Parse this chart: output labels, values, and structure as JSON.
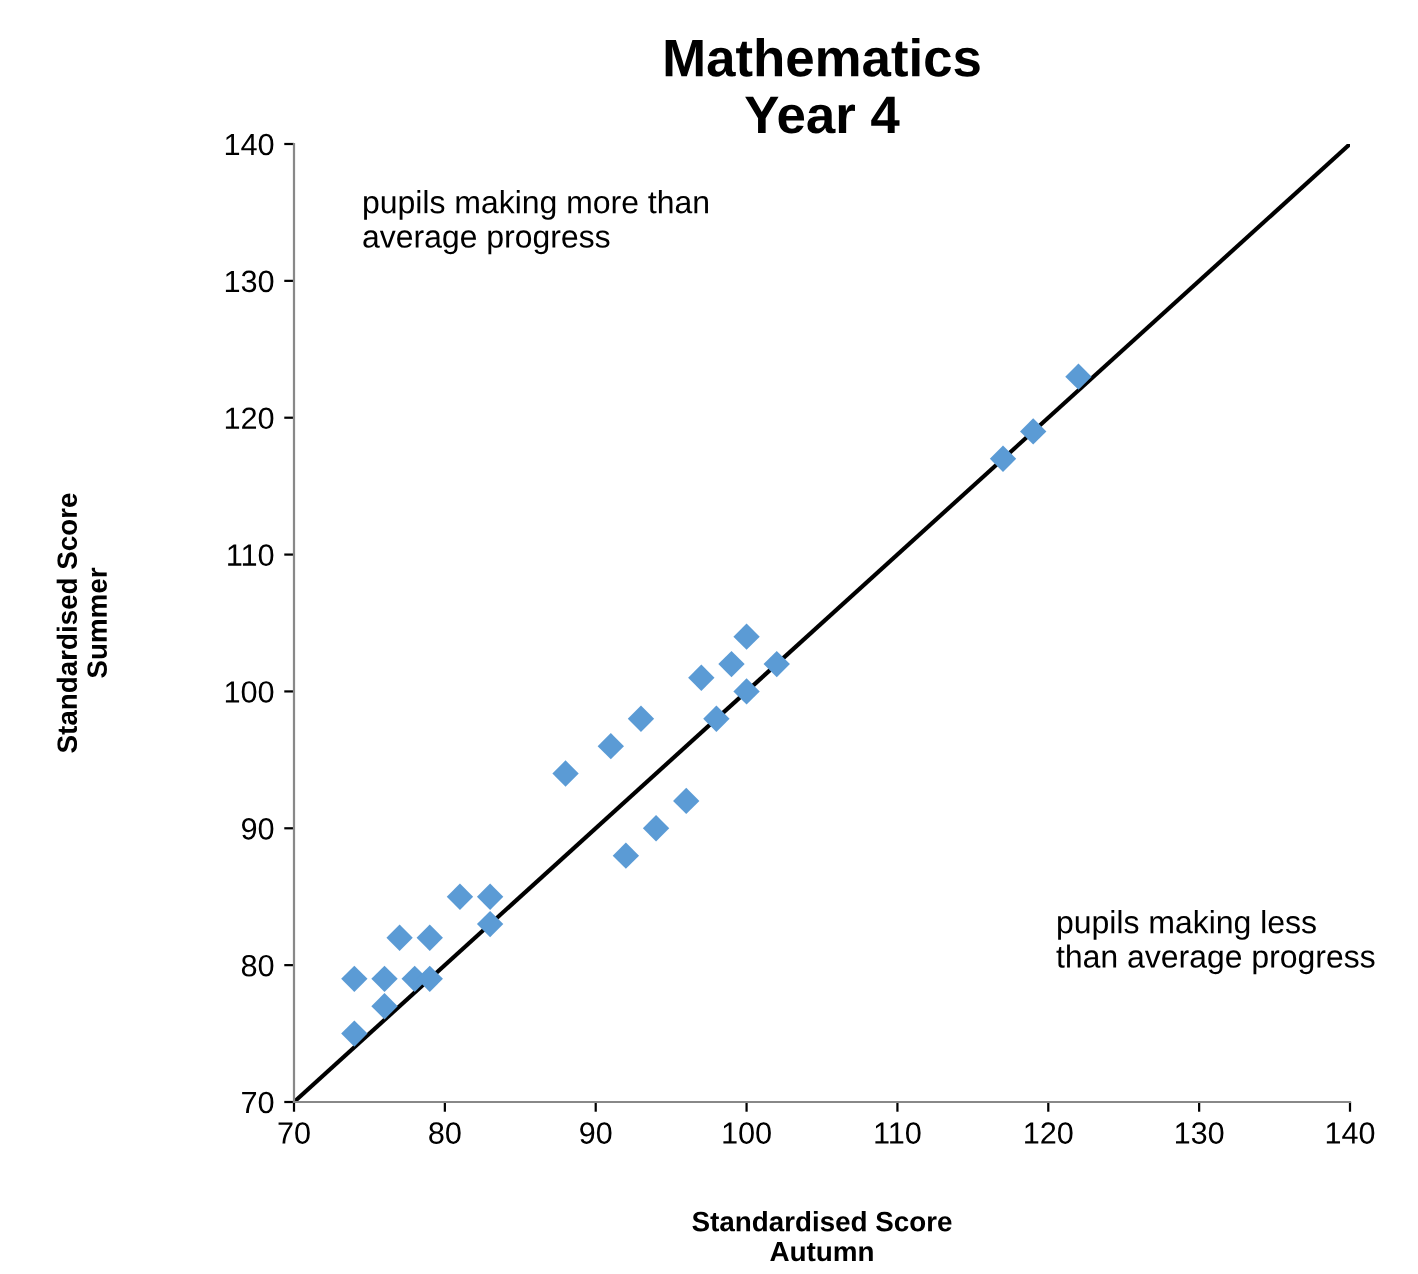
{
  "chart_data": {
    "type": "scatter",
    "title": "Mathematics\nYear 4",
    "xlabel": "Standardised Score\nAutumn",
    "ylabel": "Standardised Score\nSummer",
    "xlim": [
      70,
      140
    ],
    "ylim": [
      70,
      140
    ],
    "xticks": [
      70,
      80,
      90,
      100,
      110,
      120,
      130,
      140
    ],
    "yticks": [
      70,
      80,
      90,
      100,
      110,
      120,
      130,
      140
    ],
    "grid": false,
    "legend": false,
    "series": [
      {
        "marker": "diamond",
        "color": "#5b9bd5",
        "x": [
          74,
          74,
          76,
          76,
          77,
          78,
          79,
          79,
          81,
          83,
          83,
          88,
          91,
          93,
          92,
          94,
          96,
          97,
          98,
          99,
          100,
          100,
          102,
          117,
          119,
          122
        ],
        "values": [
          75,
          79,
          79,
          77,
          82,
          79,
          79,
          82,
          85,
          85,
          83,
          94,
          96,
          98,
          88,
          90,
          92,
          101,
          98,
          102,
          104,
          100,
          102,
          117,
          119,
          123
        ]
      },
      {
        "type": "line",
        "marker": "none",
        "color": "#000000",
        "x": [
          70,
          140
        ],
        "values": [
          70,
          140
        ]
      }
    ],
    "annotations": [
      "pupils making more than\naverage progress",
      "pupils making less\nthan average progress"
    ]
  }
}
